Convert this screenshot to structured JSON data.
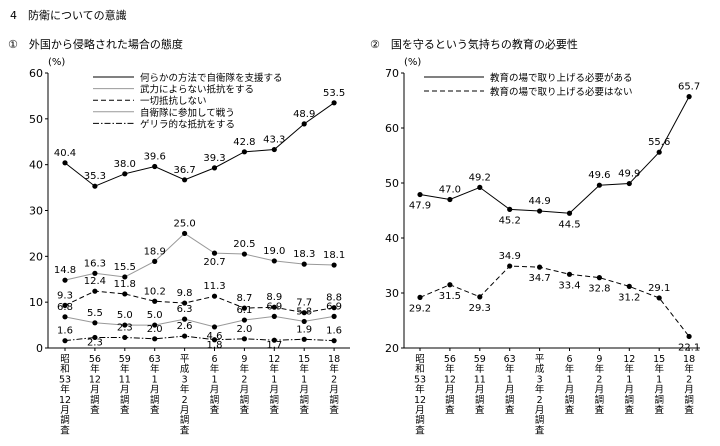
{
  "page": {
    "section_title": "4　防衛についての意識"
  },
  "chart_data": [
    {
      "type": "line",
      "title": "①　外国から侵略された場合の態度",
      "ylabel": "(%)",
      "ylim": [
        0,
        60
      ],
      "yticks": [
        0,
        10,
        20,
        30,
        40,
        50,
        60
      ],
      "grid": false,
      "legend_position": "top-right",
      "categories": [
        "昭和53年12月調査",
        "56年12月調査",
        "59年11月調査",
        "63年1月調査",
        "平成3年2月調査",
        "6年1月調査",
        "9年2月調査",
        "12年1月調査",
        "15年1月調査",
        "18年2月調査"
      ],
      "tick_labels": [
        [
          "昭",
          "和",
          "53",
          "年",
          "12",
          "月",
          "調",
          "査"
        ],
        [
          "56",
          "年",
          "12",
          "月",
          "調",
          "査"
        ],
        [
          "59",
          "年",
          "11",
          "月",
          "調",
          "査"
        ],
        [
          "63",
          "年",
          "1",
          "月",
          "調",
          "査"
        ],
        [
          "平",
          "成",
          "3",
          "年",
          "2",
          "月",
          "調",
          "査"
        ],
        [
          "6",
          "年",
          "1",
          "月",
          "調",
          "査"
        ],
        [
          "9",
          "年",
          "2",
          "月",
          "調",
          "査"
        ],
        [
          "12",
          "年",
          "1",
          "月",
          "調",
          "査"
        ],
        [
          "15",
          "年",
          "1",
          "月",
          "調",
          "査"
        ],
        [
          "18",
          "年",
          "2",
          "月",
          "調",
          "査"
        ]
      ],
      "series": [
        {
          "name": "何らかの方法で自衛隊を支援する",
          "style": "solid",
          "color": "#000000",
          "marker": "dot",
          "values": [
            40.4,
            35.3,
            38.0,
            39.6,
            36.7,
            39.3,
            42.8,
            43.3,
            48.9,
            53.5
          ]
        },
        {
          "name": "武力によらない抵抗をする",
          "style": "solid",
          "color": "#999999",
          "marker": "dot",
          "values": [
            14.8,
            16.3,
            15.5,
            18.9,
            25.0,
            20.7,
            20.5,
            19.0,
            18.3,
            18.1
          ]
        },
        {
          "name": "一切抵抗しない",
          "style": "dashed",
          "color": "#000000",
          "marker": "dot",
          "values": [
            9.3,
            12.4,
            11.8,
            10.2,
            9.8,
            11.3,
            8.7,
            8.9,
            7.7,
            8.8
          ]
        },
        {
          "name": "自衛隊に参加して戦う",
          "style": "solid",
          "color": "#999999",
          "marker": "dot",
          "values": [
            6.8,
            5.5,
            5.0,
            5.0,
            6.3,
            4.6,
            6.1,
            6.9,
            5.8,
            6.9
          ]
        },
        {
          "name": "ゲリラ的な抵抗をする",
          "style": "dashdot",
          "color": "#000000",
          "marker": "dot",
          "values": [
            1.6,
            2.3,
            2.3,
            2.0,
            2.6,
            1.8,
            2.0,
            1.7,
            1.9,
            1.6
          ]
        }
      ]
    },
    {
      "type": "line",
      "title": "②　国を守るという気持ちの教育の必要性",
      "ylabel": "(%)",
      "ylim": [
        20,
        70
      ],
      "yticks": [
        20,
        30,
        40,
        50,
        60,
        70
      ],
      "grid": false,
      "legend_position": "top-left",
      "categories": [
        "昭和53年12月調査",
        "56年12月調査",
        "59年11月調査",
        "63年1月調査",
        "平成3年2月調査",
        "6年1月調査",
        "9年2月調査",
        "12年1月調査",
        "15年1月調査",
        "18年2月調査"
      ],
      "tick_labels": [
        [
          "昭",
          "和",
          "53",
          "年",
          "12",
          "月",
          "調",
          "査"
        ],
        [
          "56",
          "年",
          "12",
          "月",
          "調",
          "査"
        ],
        [
          "59",
          "年",
          "11",
          "月",
          "調",
          "査"
        ],
        [
          "63",
          "年",
          "1",
          "月",
          "調",
          "査"
        ],
        [
          "平",
          "成",
          "3",
          "年",
          "2",
          "月",
          "調",
          "査"
        ],
        [
          "6",
          "年",
          "1",
          "月",
          "調",
          "査"
        ],
        [
          "9",
          "年",
          "2",
          "月",
          "調",
          "査"
        ],
        [
          "12",
          "年",
          "1",
          "月",
          "調",
          "査"
        ],
        [
          "15",
          "年",
          "1",
          "月",
          "調",
          "査"
        ],
        [
          "18",
          "年",
          "2",
          "月",
          "調",
          "査"
        ]
      ],
      "series": [
        {
          "name": "教育の場で取り上げる必要がある",
          "style": "solid",
          "color": "#000000",
          "marker": "dot",
          "values": [
            47.9,
            47.0,
            49.2,
            45.2,
            44.9,
            44.5,
            49.6,
            49.9,
            55.6,
            65.7
          ]
        },
        {
          "name": "教育の場で取り上げる必要はない",
          "style": "dashed",
          "color": "#000000",
          "marker": "dot",
          "values": [
            29.2,
            31.5,
            29.3,
            34.9,
            34.7,
            33.4,
            32.8,
            31.2,
            29.1,
            22.1
          ]
        }
      ]
    }
  ]
}
